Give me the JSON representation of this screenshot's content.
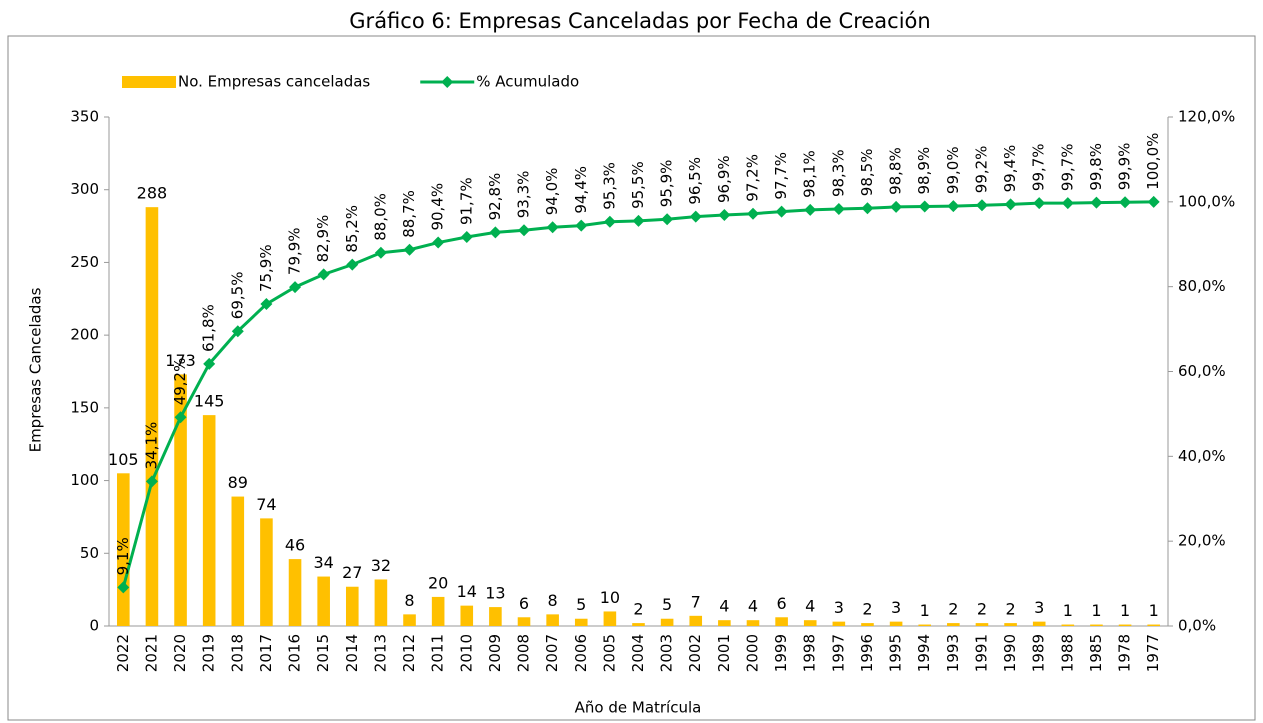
{
  "chart_data": {
    "type": "bar_line",
    "title": "Gráfico 6: Empresas Canceladas por Fecha de Creación",
    "x_label": "Año de Matrícula",
    "y_label": "Empresas Canceladas",
    "categories": [
      "2022",
      "2021",
      "2020",
      "2019",
      "2018",
      "2017",
      "2016",
      "2015",
      "2014",
      "2013",
      "2012",
      "2011",
      "2010",
      "2009",
      "2008",
      "2007",
      "2006",
      "2005",
      "2004",
      "2003",
      "2002",
      "2001",
      "2000",
      "1999",
      "1998",
      "1997",
      "1996",
      "1995",
      "1994",
      "1993",
      "1991",
      "1990",
      "1989",
      "1988",
      "1985",
      "1978",
      "1977"
    ],
    "series": [
      {
        "name": "No. Empresas canceladas",
        "type": "bar",
        "color": "#ffc000",
        "values": [
          105,
          288,
          173,
          145,
          89,
          74,
          46,
          34,
          27,
          32,
          8,
          20,
          14,
          13,
          6,
          8,
          5,
          10,
          2,
          5,
          7,
          4,
          4,
          6,
          4,
          3,
          2,
          3,
          1,
          2,
          2,
          2,
          3,
          1,
          1,
          1,
          1
        ]
      },
      {
        "name": "% Acumulado",
        "type": "line",
        "axis": "y2",
        "color": "#00b050",
        "values": [
          9.1,
          34.1,
          49.2,
          61.8,
          69.5,
          75.9,
          79.9,
          82.9,
          85.2,
          88.0,
          88.7,
          90.4,
          91.7,
          92.8,
          93.3,
          94.0,
          94.4,
          95.3,
          95.5,
          95.9,
          96.5,
          96.9,
          97.2,
          97.7,
          98.1,
          98.3,
          98.5,
          98.8,
          98.9,
          99.0,
          99.2,
          99.4,
          99.7,
          99.7,
          99.8,
          99.9,
          100.0
        ],
        "value_labels": [
          "9,1%",
          "34,1%",
          "49,2%",
          "61,8%",
          "69,5%",
          "75,9%",
          "79,9%",
          "82,9%",
          "85,2%",
          "88,0%",
          "88,7%",
          "90,4%",
          "91,7%",
          "92,8%",
          "93,3%",
          "94,0%",
          "94,4%",
          "95,3%",
          "95,5%",
          "95,9%",
          "96,5%",
          "96,9%",
          "97,2%",
          "97,7%",
          "98,1%",
          "98,3%",
          "98,5%",
          "98,8%",
          "98,9%",
          "99,0%",
          "99,2%",
          "99,4%",
          "99,7%",
          "99,7%",
          "99,8%",
          "99,9%",
          "100,0%"
        ]
      }
    ],
    "ylim": [
      0,
      350
    ],
    "yticks": [
      0,
      50,
      100,
      150,
      200,
      250,
      300,
      350
    ],
    "y2lim": [
      0,
      120
    ],
    "y2ticks": [
      {
        "value": 0,
        "label": "0,0%"
      },
      {
        "value": 20,
        "label": "20,0%"
      },
      {
        "value": 40,
        "label": "40,0%"
      },
      {
        "value": 60,
        "label": "60,0%"
      },
      {
        "value": 80,
        "label": "80,0%"
      },
      {
        "value": 100,
        "label": "100,0%"
      },
      {
        "value": 120,
        "label": "120,0%"
      }
    ],
    "legend": "top-left",
    "grid": false
  }
}
